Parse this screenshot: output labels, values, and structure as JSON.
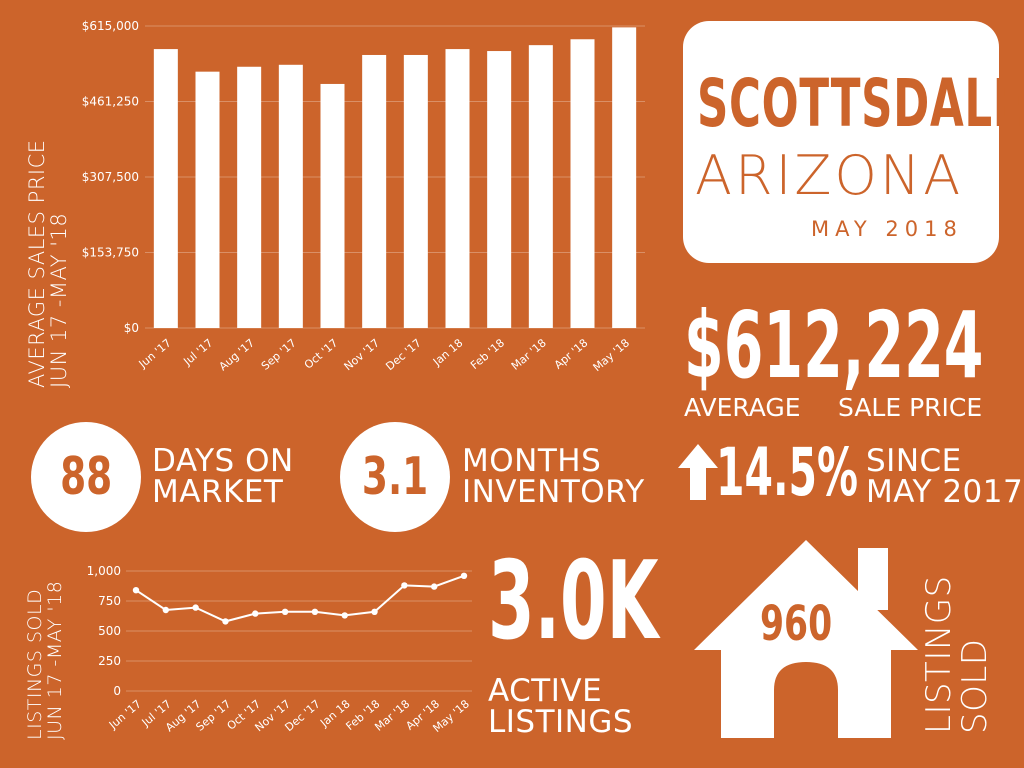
{
  "colors": {
    "background": "#cc642b",
    "foreground": "#ffffff"
  },
  "title_card": {
    "city": "SCOTTSDALE",
    "state": "ARIZONA",
    "date": "MAY 2018"
  },
  "average_price": {
    "value": "$612,224",
    "label_left": "AVERAGE",
    "label_right": "SALE PRICE"
  },
  "days_on_market": {
    "value": "88",
    "label_line1": "DAYS ON",
    "label_line2": "MARKET"
  },
  "months_inventory": {
    "value": "3.1",
    "label_line1": "MONTHS",
    "label_line2": "INVENTORY"
  },
  "change": {
    "icon": "arrow-up-icon",
    "value": "14.5%",
    "label_line1": "SINCE",
    "label_line2": "MAY 2017"
  },
  "active_listings": {
    "value": "3.0K",
    "label_line1": "ACTIVE",
    "label_line2": "LISTINGS"
  },
  "listings_sold_house": {
    "icon": "house-icon",
    "value": "960",
    "label_line1": "LISTINGS",
    "label_line2": "SOLD"
  },
  "chart_data": [
    {
      "type": "bar",
      "ylabel_line1": "AVERAGE SALES PRICE",
      "ylabel_line2": "JUN 17 -MAY '18",
      "categories": [
        "Jun '17",
        "Jul '17",
        "Aug '17",
        "Sep '17",
        "Oct '17",
        "Nov '17",
        "Dec '17",
        "Jan 18",
        "Feb '18",
        "Mar '18",
        "Apr '18",
        "May '18"
      ],
      "values": [
        568000,
        522000,
        532000,
        536000,
        497000,
        556000,
        556000,
        568000,
        564000,
        576000,
        588000,
        612224
      ],
      "ylim": [
        0,
        615000
      ],
      "yticks": [
        "$0",
        "$153,750",
        "$307,500",
        "$461,250",
        "$615,000"
      ],
      "ytick_values": [
        0,
        153750,
        307500,
        461250,
        615000
      ],
      "grid": true
    },
    {
      "type": "line",
      "ylabel_line1": "LISTINGS SOLD",
      "ylabel_line2": "JUN 17 -MAY '18",
      "categories": [
        "Jun '17",
        "Jul '17",
        "Aug '17",
        "Sep '17",
        "Oct '17",
        "Nov '17",
        "Dec '17",
        "Jan 18",
        "Feb '18",
        "Mar '18",
        "Apr '18",
        "May '18"
      ],
      "values": [
        840,
        675,
        695,
        580,
        645,
        660,
        660,
        630,
        660,
        880,
        870,
        960
      ],
      "ylim": [
        0,
        1000
      ],
      "yticks": [
        "0",
        "250",
        "500",
        "750",
        "1,000"
      ],
      "ytick_values": [
        0,
        250,
        500,
        750,
        1000
      ],
      "grid": true
    }
  ]
}
